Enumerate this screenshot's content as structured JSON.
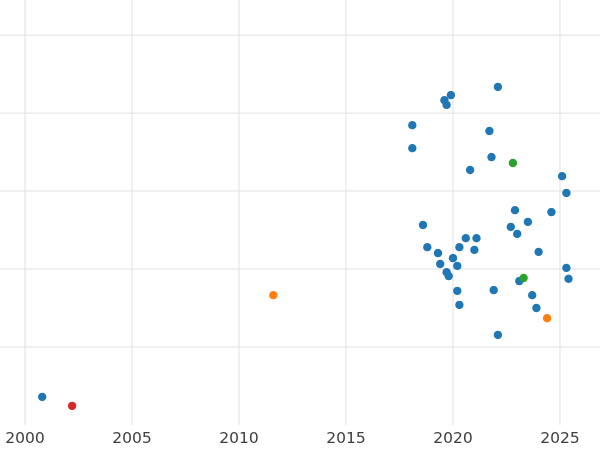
{
  "chart_data": {
    "type": "scatter",
    "title": "",
    "xlabel": "",
    "ylabel": "",
    "x_range": [
      1998.83,
      2026.87
    ],
    "y_range": [
      0,
      109
    ],
    "x_ticks": [
      2000,
      2005,
      2010,
      2015,
      2020,
      2025
    ],
    "x_tick_labels": [
      "2000",
      "2005",
      "2010",
      "2015",
      "2020",
      "2025"
    ],
    "y_gridlines": [
      20,
      40,
      60,
      80,
      100
    ],
    "grid": true,
    "legend": "none",
    "colors": {
      "blue": "#1f77b4",
      "orange": "#ff7f0e",
      "green": "#2ca02c",
      "red": "#d62728"
    },
    "series": [
      {
        "name": "blue-series",
        "color": "#1f77b4",
        "points": [
          [
            2000.8,
            7.2
          ],
          [
            2018.1,
            76.9
          ],
          [
            2018.1,
            71.0
          ],
          [
            2019.6,
            83.3
          ],
          [
            2019.7,
            82.1
          ],
          [
            2019.9,
            84.6
          ],
          [
            2022.1,
            86.7
          ],
          [
            2021.7,
            75.4
          ],
          [
            2021.8,
            68.7
          ],
          [
            2020.8,
            65.4
          ],
          [
            2025.1,
            63.8
          ],
          [
            2025.3,
            59.5
          ],
          [
            2018.6,
            51.3
          ],
          [
            2018.8,
            45.6
          ],
          [
            2019.3,
            44.1
          ],
          [
            2019.4,
            41.3
          ],
          [
            2019.7,
            39.2
          ],
          [
            2019.8,
            38.2
          ],
          [
            2020.0,
            42.8
          ],
          [
            2020.2,
            40.8
          ],
          [
            2020.3,
            45.6
          ],
          [
            2020.6,
            47.9
          ],
          [
            2021.0,
            44.9
          ],
          [
            2021.1,
            47.9
          ],
          [
            2022.7,
            50.8
          ],
          [
            2022.9,
            55.1
          ],
          [
            2023.0,
            49.0
          ],
          [
            2023.5,
            52.1
          ],
          [
            2024.0,
            44.4
          ],
          [
            2024.6,
            54.6
          ],
          [
            2020.2,
            34.4
          ],
          [
            2020.3,
            30.8
          ],
          [
            2021.9,
            34.6
          ],
          [
            2023.1,
            36.9
          ],
          [
            2023.7,
            33.3
          ],
          [
            2023.9,
            30.0
          ],
          [
            2022.1,
            23.1
          ],
          [
            2025.3,
            40.3
          ],
          [
            2025.4,
            37.5
          ]
        ]
      },
      {
        "name": "orange-series",
        "color": "#ff7f0e",
        "points": [
          [
            2011.6,
            33.3
          ],
          [
            2024.4,
            27.4
          ]
        ]
      },
      {
        "name": "green-series",
        "color": "#2ca02c",
        "points": [
          [
            2022.8,
            67.2
          ],
          [
            2023.3,
            37.7
          ]
        ]
      },
      {
        "name": "red-series",
        "color": "#d62728",
        "points": [
          [
            2002.2,
            4.9
          ]
        ]
      }
    ]
  }
}
